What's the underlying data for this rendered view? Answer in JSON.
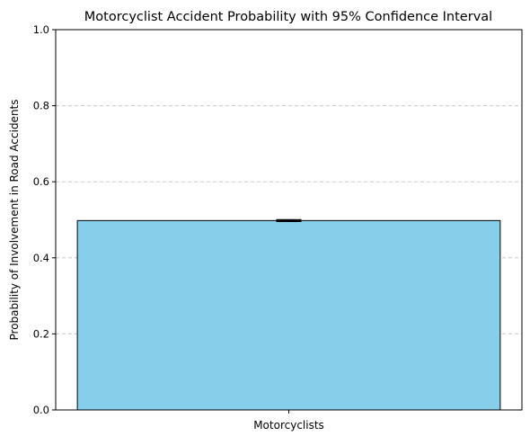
{
  "chart_data": {
    "type": "bar",
    "title": "Motorcyclist Accident Probability with 95% Confidence Interval",
    "xlabel": "",
    "ylabel": "Probability of Involvement in Road Accidents",
    "categories": [
      "Motorcyclists"
    ],
    "values": [
      0.498
    ],
    "error_bars": [
      {
        "lower": 0.496,
        "upper": 0.5
      }
    ],
    "ylim": [
      0,
      1.0
    ],
    "yticks": [
      "0.0",
      "0.2",
      "0.4",
      "0.6",
      "0.8",
      "1.0"
    ],
    "grid": {
      "y": true,
      "x": false,
      "style": "dashed"
    },
    "colors": {
      "bar": "#87CEEB",
      "bar_edge": "#000000",
      "grid": "#c8c8c8"
    }
  }
}
